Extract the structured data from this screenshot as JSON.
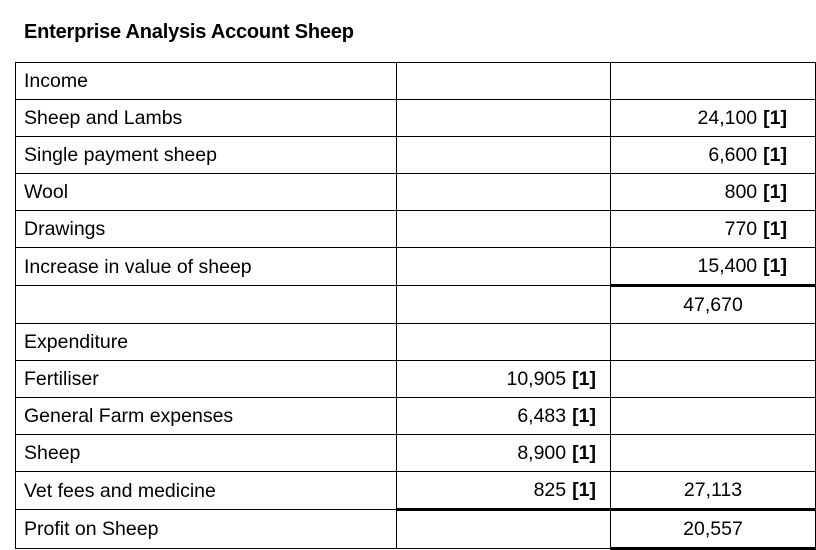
{
  "title": "Enterprise Analysis Account Sheep",
  "rows": [
    {
      "label": "Income",
      "col2": "",
      "col2_mark": "",
      "col3": "",
      "col3_mark": ""
    },
    {
      "label": "Sheep and Lambs",
      "col2": "",
      "col2_mark": "",
      "col3": "24,100",
      "col3_mark": "[1]"
    },
    {
      "label": "Single payment sheep",
      "col2": "",
      "col2_mark": "",
      "col3": "6,600",
      "col3_mark": "[1]"
    },
    {
      "label": "Wool",
      "col2": "",
      "col2_mark": "",
      "col3": "800",
      "col3_mark": "[1]"
    },
    {
      "label": "Drawings",
      "col2": "",
      "col2_mark": "",
      "col3": "770",
      "col3_mark": "[1]"
    },
    {
      "label": "Increase in value of sheep",
      "col2": "",
      "col2_mark": "",
      "col3": "15,400",
      "col3_mark": "[1]"
    },
    {
      "label": "",
      "col2": "",
      "col2_mark": "",
      "col3": "47,670",
      "col3_mark": ""
    },
    {
      "label": "Expenditure",
      "col2": "",
      "col2_mark": "",
      "col3": "",
      "col3_mark": ""
    },
    {
      "label": "Fertiliser",
      "col2": "10,905",
      "col2_mark": "[1]",
      "col3": "",
      "col3_mark": ""
    },
    {
      "label": "General Farm expenses",
      "col2": "6,483",
      "col2_mark": "[1]",
      "col3": "",
      "col3_mark": ""
    },
    {
      "label": "Sheep",
      "col2": "8,900",
      "col2_mark": "[1]",
      "col3": "",
      "col3_mark": ""
    },
    {
      "label": "Vet fees and medicine",
      "col2": "825",
      "col2_mark": "[1]",
      "col3": "27,113",
      "col3_mark": ""
    },
    {
      "label": "Profit on Sheep",
      "col2": "",
      "col2_mark": "",
      "col3": "20,557",
      "col3_mark": ""
    }
  ]
}
